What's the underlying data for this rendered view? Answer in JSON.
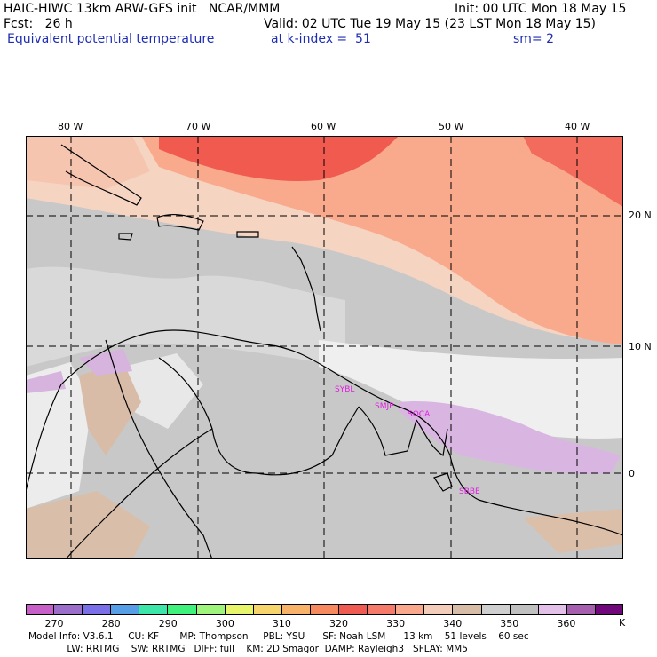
{
  "header": {
    "title_left": "HAIC-HIWC 13km ARW-GFS init   NCAR/MMM",
    "init": "Init: 00 UTC Mon 18 May 15",
    "fcst": "Fcst:   26 h",
    "valid": "Valid: 02 UTC Tue 19 May 15 (23 LST Mon 18 May 15)",
    "field": "Equivalent potential temperature",
    "level": "at k-index =  51",
    "smooth": "sm= 2"
  },
  "map": {
    "lon_labels": [
      "80 W",
      "70 W",
      "60 W",
      "50 W",
      "40 W"
    ],
    "lat_labels": [
      "20 N",
      "10 N",
      "0"
    ],
    "stations": [
      "SYBL",
      "SMJP",
      "SOCA",
      "SBBE"
    ],
    "colors": {
      "warm_red": "#f05a4f",
      "salmon": "#faa88a",
      "peach": "#f8d6c6",
      "tan": "#d7bca7",
      "gray": "#c8c8c8",
      "light_gray": "#e6e6e6",
      "whitish": "#f0f0f0",
      "lavender": "#d8b6e0",
      "purple": "#b48cd2",
      "station_label": "#e020e0"
    }
  },
  "colorbar": {
    "colors": [
      "#c85fc9",
      "#9b6ec9",
      "#7b6fe7",
      "#569fe7",
      "#3ce6a9",
      "#3ff27c",
      "#9ff57b",
      "#e6f56a",
      "#f7d56d",
      "#f9b269",
      "#f7895f",
      "#ef5b50",
      "#f57a6a",
      "#f9a88c",
      "#f3cdb9",
      "#d7bca7",
      "#cfcfcf",
      "#c0c0c0",
      "#e2c0e8",
      "#a65fae",
      "#70087c"
    ],
    "labels": [
      "270",
      "280",
      "290",
      "300",
      "310",
      "320",
      "330",
      "340",
      "350",
      "360"
    ],
    "unit": "K"
  },
  "footer": {
    "line1": "Model Info: V3.6.1     CU: KF       MP: Thompson     PBL: YSU      SF: Noah LSM      13 km    51 levels    60 sec",
    "line2": "             LW: RRTMG    SW: RRTMG   DIFF: full    KM: 2D Smagor  DAMP: Rayleigh3   SFLAY: MM5"
  }
}
